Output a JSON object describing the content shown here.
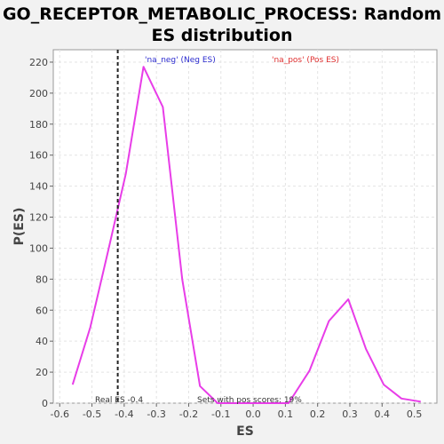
{
  "chart_data": {
    "type": "line",
    "title_line1": "GO_RECEPTOR_METABOLIC_PROCESS: Random",
    "title_line2": "ES distribution",
    "xlabel": "ES",
    "ylabel": "P(ES)",
    "xlim": [
      -0.62,
      0.57
    ],
    "ylim": [
      0,
      228
    ],
    "xticks": [
      -0.6,
      -0.5,
      -0.4,
      -0.3,
      -0.2,
      -0.1,
      0.0,
      0.1,
      0.2,
      0.3,
      0.4,
      0.5
    ],
    "xtick_labels": [
      "-0.6",
      "-0.5",
      "-0.4",
      "-0.3",
      "-0.2",
      "-0.1",
      "0.0",
      "0.1",
      "0.2",
      "0.3",
      "0.4",
      "0.5"
    ],
    "yticks": [
      0,
      20,
      40,
      60,
      80,
      100,
      120,
      140,
      160,
      180,
      200,
      220
    ],
    "ytick_labels": [
      "0",
      "20",
      "40",
      "60",
      "80",
      "100",
      "120",
      "140",
      "160",
      "180",
      "200",
      "220"
    ],
    "grid": true,
    "series": [
      {
        "color": "#e83de8",
        "x": [
          -0.56,
          -0.505,
          -0.45,
          -0.395,
          -0.34,
          -0.28,
          -0.22,
          -0.165,
          -0.11,
          -0.055,
          0.0,
          0.055,
          0.11,
          0.175,
          0.235,
          0.295,
          0.35,
          0.405,
          0.46,
          0.52
        ],
        "y": [
          12,
          49,
          98,
          148,
          217,
          191,
          80,
          11,
          0,
          0,
          0,
          0,
          0,
          21,
          53,
          67,
          35,
          12,
          3,
          1
        ]
      }
    ],
    "legend": [
      {
        "text": "'na_neg' (Neg ES)",
        "color": "#2b2bcf"
      },
      {
        "text": "'na_pos' (Pos ES)",
        "color": "#e03030"
      }
    ],
    "real_es": {
      "x": -0.42,
      "label": "Real ES -0.4"
    },
    "annotation": "Sets with pos scores: 19%"
  }
}
